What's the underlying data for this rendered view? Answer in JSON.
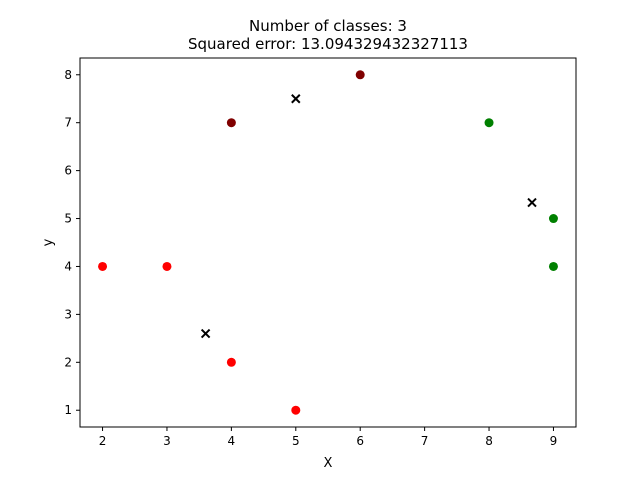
{
  "chart_data": {
    "type": "scatter",
    "title_lines": [
      "Number of classes: 3",
      "Squared error: 13.094329432327113"
    ],
    "xlabel": "X",
    "ylabel": "y",
    "xlim": [
      1.65,
      9.35
    ],
    "ylim": [
      0.65,
      8.35
    ],
    "xticks": [
      2,
      3,
      4,
      5,
      6,
      7,
      8,
      9
    ],
    "yticks": [
      1,
      2,
      3,
      4,
      5,
      6,
      7,
      8
    ],
    "grid": false,
    "series": [
      {
        "color": "#ff0000",
        "marker": "circle",
        "points": [
          [
            2,
            4
          ],
          [
            3,
            4
          ],
          [
            4,
            2
          ],
          [
            5,
            1
          ]
        ]
      },
      {
        "color": "#800000",
        "marker": "circle",
        "points": [
          [
            4,
            7
          ],
          [
            6,
            8
          ]
        ]
      },
      {
        "color": "#008000",
        "marker": "circle",
        "points": [
          [
            8,
            7
          ],
          [
            9,
            5
          ],
          [
            9,
            4
          ]
        ]
      },
      {
        "color": "#000000",
        "marker": "x",
        "points": [
          [
            3.6,
            2.6
          ],
          [
            5,
            7.5
          ],
          [
            8.667,
            5.333
          ]
        ]
      }
    ]
  }
}
